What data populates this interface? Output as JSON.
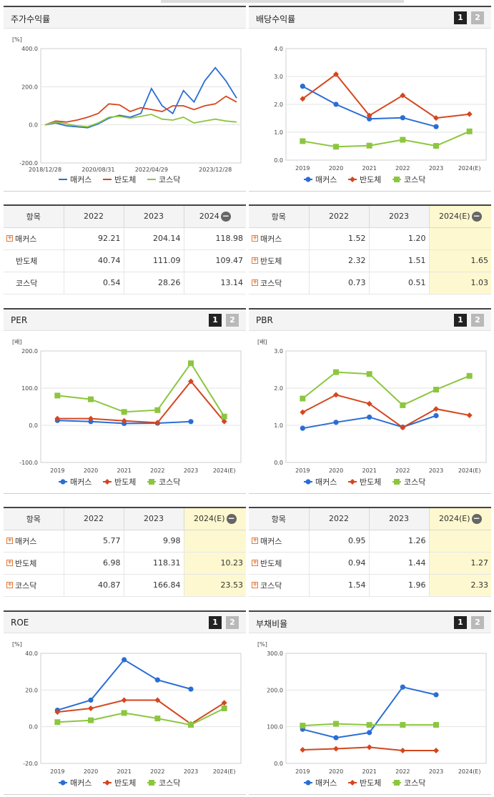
{
  "colors": {
    "s0": "#2a6dd5",
    "s1": "#d4471e",
    "s2": "#8cc63f"
  },
  "legend": [
    "매커스",
    "반도체",
    "코스닥"
  ],
  "price_chart": {
    "title": "주가수익률",
    "unit": "[%]",
    "y_ticks": [
      "400.0",
      "200.0",
      "0.0",
      "-200.0"
    ],
    "x_ticks": [
      "2018/12/28",
      "2020/08/31",
      "2022/04/29",
      "2023/12/28"
    ],
    "chart_data": {
      "type": "line",
      "title": "주가수익률",
      "ylabel": "[%]",
      "ylim": [
        -200,
        400
      ],
      "x": [
        "2018/12/28",
        "2019/04",
        "2019/08",
        "2019/12",
        "2020/04",
        "2020/08/31",
        "2020/12",
        "2021/04",
        "2021/08",
        "2021/12",
        "2022/04/29",
        "2022/08",
        "2022/12",
        "2023/04",
        "2023/06",
        "2023/08",
        "2023/12/28",
        "2024/03",
        "2024/05"
      ],
      "series": [
        {
          "name": "매커스",
          "values": [
            0,
            10,
            -5,
            -10,
            -15,
            5,
            35,
            50,
            40,
            60,
            190,
            100,
            60,
            180,
            120,
            230,
            300,
            230,
            140
          ]
        },
        {
          "name": "반도체",
          "values": [
            0,
            20,
            15,
            25,
            40,
            60,
            110,
            105,
            70,
            90,
            80,
            70,
            100,
            100,
            80,
            100,
            110,
            150,
            120
          ]
        },
        {
          "name": "코스닥",
          "values": [
            0,
            15,
            5,
            -5,
            -10,
            10,
            40,
            45,
            35,
            45,
            55,
            30,
            25,
            40,
            10,
            20,
            30,
            20,
            15
          ]
        }
      ]
    }
  },
  "div_chart": {
    "title": "배당수익률",
    "page1": "1",
    "page2": "2",
    "y_ticks": [
      "4.0",
      "3.0",
      "2.0",
      "1.0",
      "0.0"
    ],
    "x_ticks": [
      "2019",
      "2020",
      "2021",
      "2022",
      "2023",
      "2024(E)"
    ],
    "chart_data": {
      "type": "line",
      "title": "배당수익률",
      "ylim": [
        0,
        4
      ],
      "categories": [
        "2019",
        "2020",
        "2021",
        "2022",
        "2023",
        "2024(E)"
      ],
      "series": [
        {
          "name": "매커스",
          "values": [
            2.65,
            2.0,
            1.48,
            1.52,
            1.2,
            null
          ]
        },
        {
          "name": "반도체",
          "values": [
            2.2,
            3.08,
            1.6,
            2.32,
            1.51,
            1.65
          ]
        },
        {
          "name": "코스닥",
          "values": [
            0.68,
            0.48,
            0.52,
            0.73,
            0.51,
            1.03
          ]
        }
      ]
    }
  },
  "per_chart": {
    "title": "PER",
    "unit": "[배]",
    "page1": "1",
    "page2": "2",
    "y_ticks": [
      "200.0",
      "100.0",
      "0.0",
      "-100.0"
    ],
    "x_ticks": [
      "2019",
      "2020",
      "2021",
      "2022",
      "2023",
      "2024(E)"
    ],
    "chart_data": {
      "type": "line",
      "title": "PER",
      "ylabel": "[배]",
      "ylim": [
        -100,
        200
      ],
      "categories": [
        "2019",
        "2020",
        "2021",
        "2022",
        "2023",
        "2024(E)"
      ],
      "series": [
        {
          "name": "매커스",
          "values": [
            13,
            10,
            5,
            5.77,
            9.98,
            null
          ]
        },
        {
          "name": "반도체",
          "values": [
            18,
            18,
            12,
            6.98,
            118.31,
            10.23
          ]
        },
        {
          "name": "코스닥",
          "values": [
            80,
            70,
            36,
            40.87,
            166.84,
            23.53
          ]
        }
      ]
    }
  },
  "pbr_chart": {
    "title": "PBR",
    "unit": "[배]",
    "page1": "1",
    "page2": "2",
    "y_ticks": [
      "3.0",
      "2.0",
      "1.0",
      "0.0"
    ],
    "x_ticks": [
      "2019",
      "2020",
      "2021",
      "2022",
      "2023",
      "2024(E)"
    ],
    "chart_data": {
      "type": "line",
      "title": "PBR",
      "ylabel": "[배]",
      "ylim": [
        0,
        3
      ],
      "categories": [
        "2019",
        "2020",
        "2021",
        "2022",
        "2023",
        "2024(E)"
      ],
      "series": [
        {
          "name": "매커스",
          "values": [
            0.92,
            1.08,
            1.22,
            0.95,
            1.26,
            null
          ]
        },
        {
          "name": "반도체",
          "values": [
            1.35,
            1.82,
            1.58,
            0.94,
            1.44,
            1.27
          ]
        },
        {
          "name": "코스닥",
          "values": [
            1.72,
            2.43,
            2.38,
            1.54,
            1.96,
            2.33
          ]
        }
      ]
    }
  },
  "roe_chart": {
    "title": "ROE",
    "unit": "[%]",
    "page1": "1",
    "page2": "2",
    "y_ticks": [
      "40.0",
      "20.0",
      "0.0",
      "-20.0"
    ],
    "x_ticks": [
      "2019",
      "2020",
      "2021",
      "2022",
      "2023",
      "2024(E)"
    ],
    "chart_data": {
      "type": "line",
      "title": "ROE",
      "ylabel": "[%]",
      "ylim": [
        -20,
        40
      ],
      "categories": [
        "2019",
        "2020",
        "2021",
        "2022",
        "2023",
        "2024(E)"
      ],
      "series": [
        {
          "name": "매커스",
          "values": [
            9,
            14.5,
            36.5,
            25.5,
            20.5,
            null
          ]
        },
        {
          "name": "반도체",
          "values": [
            8,
            10,
            14.5,
            14.5,
            1.5,
            13
          ]
        },
        {
          "name": "코스닥",
          "values": [
            2.5,
            3.5,
            7.5,
            4.5,
            1,
            10
          ]
        }
      ]
    }
  },
  "debt_chart": {
    "title": "부채비율",
    "unit": "[%]",
    "page1": "1",
    "page2": "2",
    "y_ticks": [
      "300.0",
      "200.0",
      "100.0",
      "0.0"
    ],
    "x_ticks": [
      "2019",
      "2020",
      "2021",
      "2022",
      "2023",
      "2024(E)"
    ],
    "chart_data": {
      "type": "line",
      "title": "부채비율",
      "ylabel": "[%]",
      "ylim": [
        0,
        300
      ],
      "categories": [
        "2019",
        "2020",
        "2021",
        "2022",
        "2023",
        "2024(E)"
      ],
      "series": [
        {
          "name": "매커스",
          "values": [
            93,
            70,
            84,
            208,
            187,
            null
          ]
        },
        {
          "name": "반도체",
          "values": [
            37,
            40,
            44,
            35,
            35,
            null
          ]
        },
        {
          "name": "코스닥",
          "values": [
            103,
            108,
            105,
            105,
            105,
            null
          ]
        }
      ]
    }
  },
  "price_table": {
    "h0": "항목",
    "h1": "2022",
    "h2": "2023",
    "h3": "2024",
    "rows": [
      {
        "label": "매커스",
        "v": [
          "92.21",
          "204.14",
          "118.98"
        ],
        "plus": true
      },
      {
        "label": "반도체",
        "v": [
          "40.74",
          "111.09",
          "109.47"
        ],
        "plus": false
      },
      {
        "label": "코스닥",
        "v": [
          "0.54",
          "28.26",
          "13.14"
        ],
        "plus": false
      }
    ]
  },
  "div_table": {
    "h0": "항목",
    "h1": "2022",
    "h2": "2023",
    "h3": "2024(E)",
    "rows": [
      {
        "label": "매커스",
        "v": [
          "1.52",
          "1.20",
          ""
        ],
        "plus": true
      },
      {
        "label": "반도체",
        "v": [
          "2.32",
          "1.51",
          "1.65"
        ],
        "plus": true
      },
      {
        "label": "코스닥",
        "v": [
          "0.73",
          "0.51",
          "1.03"
        ],
        "plus": true
      }
    ]
  },
  "per_table": {
    "h0": "항목",
    "h1": "2022",
    "h2": "2023",
    "h3": "2024(E)",
    "rows": [
      {
        "label": "매커스",
        "v": [
          "5.77",
          "9.98",
          ""
        ],
        "plus": true
      },
      {
        "label": "반도체",
        "v": [
          "6.98",
          "118.31",
          "10.23"
        ],
        "plus": true
      },
      {
        "label": "코스닥",
        "v": [
          "40.87",
          "166.84",
          "23.53"
        ],
        "plus": true
      }
    ]
  },
  "pbr_table": {
    "h0": "항목",
    "h1": "2022",
    "h2": "2023",
    "h3": "2024(E)",
    "rows": [
      {
        "label": "매커스",
        "v": [
          "0.95",
          "1.26",
          ""
        ],
        "plus": true
      },
      {
        "label": "반도체",
        "v": [
          "0.94",
          "1.44",
          "1.27"
        ],
        "plus": true
      },
      {
        "label": "코스닥",
        "v": [
          "1.54",
          "1.96",
          "2.33"
        ],
        "plus": true
      }
    ]
  }
}
